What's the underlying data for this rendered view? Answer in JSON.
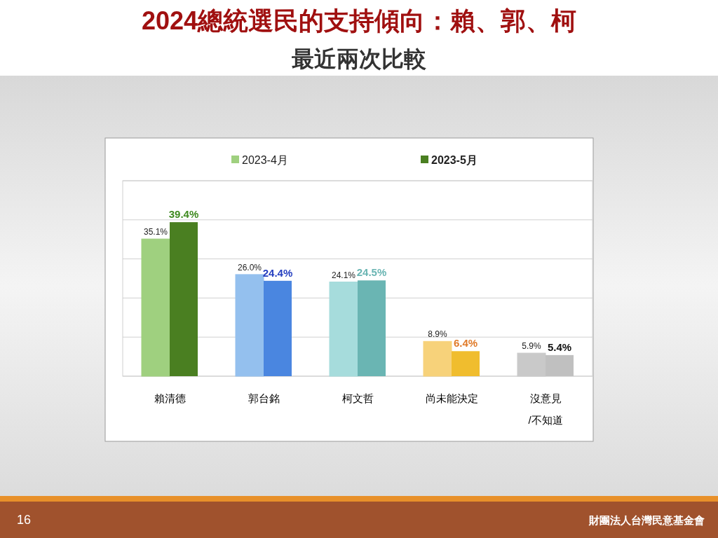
{
  "chart_data": {
    "type": "bar",
    "title": "2024總統選民的支持傾向：賴、郭、柯",
    "subtitle": "最近兩次比較",
    "categories": [
      "賴清德",
      "郭台銘",
      "柯文哲",
      "尚未能決定",
      "沒意見\n/不知道"
    ],
    "series": [
      {
        "name": "2023-4月",
        "color": "#9fd07f",
        "colors": [
          "#9fd07f",
          "#94c0ee",
          "#a6dcdc",
          "#f7d27a",
          "#c9c9c9"
        ],
        "values": [
          35.1,
          26.0,
          24.1,
          8.9,
          5.9
        ],
        "value_labels": [
          "35.1%",
          "26.0%",
          "24.1%",
          "8.9%",
          "5.9%"
        ]
      },
      {
        "name": "2023-5月",
        "color": "#4a7f21",
        "colors": [
          "#4a7f21",
          "#4a86e0",
          "#6ab5b3",
          "#f0bd2e",
          "#c0c0c0"
        ],
        "values": [
          39.4,
          24.4,
          24.5,
          6.4,
          5.4
        ],
        "value_labels": [
          "39.4%",
          "24.4%",
          "24.5%",
          "6.4%",
          "5.4%"
        ]
      }
    ],
    "ylim": [
      0,
      50
    ],
    "yticks": [
      {
        "value": 0,
        "label": null
      },
      {
        "value": 10,
        "label": null
      },
      {
        "value": 20,
        "label": null
      },
      {
        "value": 30,
        "label": null
      },
      {
        "value": 40,
        "label": null
      },
      {
        "value": 50,
        "label": null
      }
    ],
    "tick_labels": "x",
    "grid": "y",
    "legend": "top",
    "annotations": [
      "16",
      "財團法人台灣民意基金會"
    ]
  }
}
